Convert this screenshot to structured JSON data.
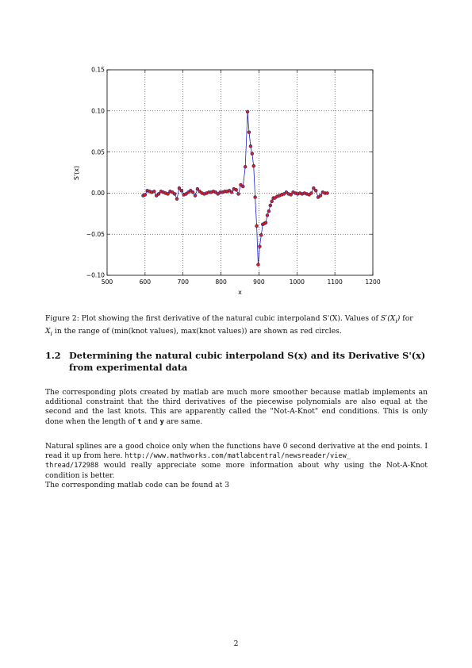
{
  "chart_data": {
    "type": "scatter",
    "xlabel": "x",
    "ylabel": "S'(x)",
    "xlim": [
      500,
      1200
    ],
    "ylim": [
      -0.1,
      0.15
    ],
    "xticks": [
      "500",
      "600",
      "700",
      "800",
      "900",
      "1000",
      "1100",
      "1200"
    ],
    "yticks": [
      "−0.10",
      "−0.05",
      "0.00",
      "0.05",
      "0.10",
      "0.15"
    ],
    "grid": true,
    "series": [
      {
        "style": "line",
        "color": "#1f1fbf",
        "x": [
          595,
          600,
          606,
          612,
          618,
          624,
          630,
          636,
          642,
          648,
          654,
          660,
          666,
          672,
          678,
          684,
          690,
          696,
          702,
          708,
          714,
          720,
          726,
          732,
          738,
          744,
          750,
          756,
          762,
          768,
          774,
          780,
          786,
          792,
          798,
          804,
          810,
          816,
          822,
          828,
          834,
          840,
          846,
          852,
          858,
          864,
          870,
          874,
          878,
          882,
          886,
          890,
          894,
          898,
          902,
          906,
          910,
          914,
          918,
          922,
          926,
          930,
          934,
          938,
          942,
          948,
          954,
          960,
          966,
          972,
          978,
          984,
          990,
          996,
          1002,
          1008,
          1014,
          1020,
          1026,
          1032,
          1038,
          1044,
          1050,
          1056,
          1062,
          1068,
          1074,
          1080
        ],
        "y": [
          -0.003,
          -0.002,
          0.003,
          0.002,
          0.001,
          0.002,
          -0.003,
          -0.001,
          0.002,
          0.001,
          0.0,
          -0.001,
          0.002,
          0.001,
          -0.001,
          -0.007,
          0.006,
          0.003,
          -0.002,
          -0.001,
          0.001,
          0.003,
          0.001,
          -0.003,
          0.005,
          0.002,
          0.0,
          -0.001,
          0.0,
          0.001,
          0.001,
          0.002,
          0.001,
          -0.001,
          0.001,
          0.001,
          0.002,
          0.002,
          0.003,
          0.001,
          0.005,
          0.004,
          -0.001,
          0.01,
          0.008,
          0.032,
          0.099,
          0.074,
          0.057,
          0.048,
          0.033,
          -0.005,
          -0.04,
          -0.087,
          -0.065,
          -0.051,
          -0.038,
          -0.037,
          -0.036,
          -0.027,
          -0.022,
          -0.015,
          -0.01,
          -0.006,
          -0.006,
          -0.004,
          -0.003,
          -0.002,
          -0.001,
          0.001,
          -0.001,
          -0.002,
          0.001,
          0.0,
          -0.001,
          0.0,
          -0.001,
          0.0,
          -0.001,
          -0.002,
          0.0,
          0.006,
          0.003,
          -0.005,
          -0.003,
          0.001,
          0.0,
          0.0
        ]
      },
      {
        "style": "markers",
        "marker_color": "#d22222",
        "x": [
          595,
          600,
          606,
          612,
          618,
          624,
          630,
          636,
          642,
          648,
          654,
          660,
          666,
          672,
          678,
          684,
          690,
          696,
          702,
          708,
          714,
          720,
          726,
          732,
          738,
          744,
          750,
          756,
          762,
          768,
          774,
          780,
          786,
          792,
          798,
          804,
          810,
          816,
          822,
          828,
          834,
          840,
          846,
          852,
          858,
          864,
          870,
          874,
          878,
          882,
          886,
          890,
          894,
          898,
          902,
          906,
          910,
          914,
          918,
          922,
          926,
          930,
          934,
          938,
          942,
          948,
          954,
          960,
          966,
          972,
          978,
          984,
          990,
          996,
          1002,
          1008,
          1014,
          1020,
          1026,
          1032,
          1038,
          1044,
          1050,
          1056,
          1062,
          1068,
          1074,
          1080
        ],
        "y": [
          -0.003,
          -0.002,
          0.003,
          0.002,
          0.001,
          0.002,
          -0.003,
          -0.001,
          0.002,
          0.001,
          0.0,
          -0.001,
          0.002,
          0.001,
          -0.001,
          -0.007,
          0.006,
          0.003,
          -0.002,
          -0.001,
          0.001,
          0.003,
          0.001,
          -0.003,
          0.005,
          0.002,
          0.0,
          -0.001,
          0.0,
          0.001,
          0.001,
          0.002,
          0.001,
          -0.001,
          0.001,
          0.001,
          0.002,
          0.002,
          0.003,
          0.001,
          0.005,
          0.004,
          -0.001,
          0.01,
          0.008,
          0.032,
          0.099,
          0.074,
          0.057,
          0.048,
          0.033,
          -0.005,
          -0.04,
          -0.087,
          -0.065,
          -0.051,
          -0.038,
          -0.037,
          -0.036,
          -0.027,
          -0.022,
          -0.015,
          -0.01,
          -0.006,
          -0.006,
          -0.004,
          -0.003,
          -0.002,
          -0.001,
          0.001,
          -0.001,
          -0.002,
          0.001,
          0.0,
          -0.001,
          0.0,
          -0.001,
          0.0,
          -0.001,
          -0.002,
          0.0,
          0.006,
          0.003,
          -0.005,
          -0.003,
          0.001,
          0.0,
          0.0
        ]
      }
    ]
  },
  "caption": {
    "lead": "Figure 2: Plot showing the first derivative of the natural cubic interpoland S'(X). Values of ",
    "math1": "S′(X",
    "sub1": "i",
    "math1_end": ")",
    "mid": " for",
    "math2": "X",
    "sub2": "i",
    "tail": " in the range of (min(knot values), max(knot values)) are shown as red circles."
  },
  "section": {
    "number": "1.2",
    "title": "Determining the natural cubic interpoland S(x) and its Derivative S'(x) from experimental data"
  },
  "paragraph1": {
    "text": "The corresponding plots created by matlab are much more smoother because matlab implements an additional constraint that the third derivatives of the piecewise polynomials are also equal at the second and the last knots. This are apparently called the \"Not-A-Knot\" end conditions. This is only done when the length of ",
    "code1": "t",
    "and": " and ",
    "code2": "y",
    "end": " are same."
  },
  "paragraph2": {
    "text": "Natural splines are a good choice only when the functions have 0 second derivative at the end points. I read it up from here. ",
    "url1": "http://www.mathworks.com/matlabcentral/newsreader/view_",
    "url2": "thread/172988",
    "text2": " would really appreciate some more information about why using the Not-A-Knot condition is better.",
    "line2": "The corresponding matlab code can be found at 3"
  },
  "page_number": "2"
}
